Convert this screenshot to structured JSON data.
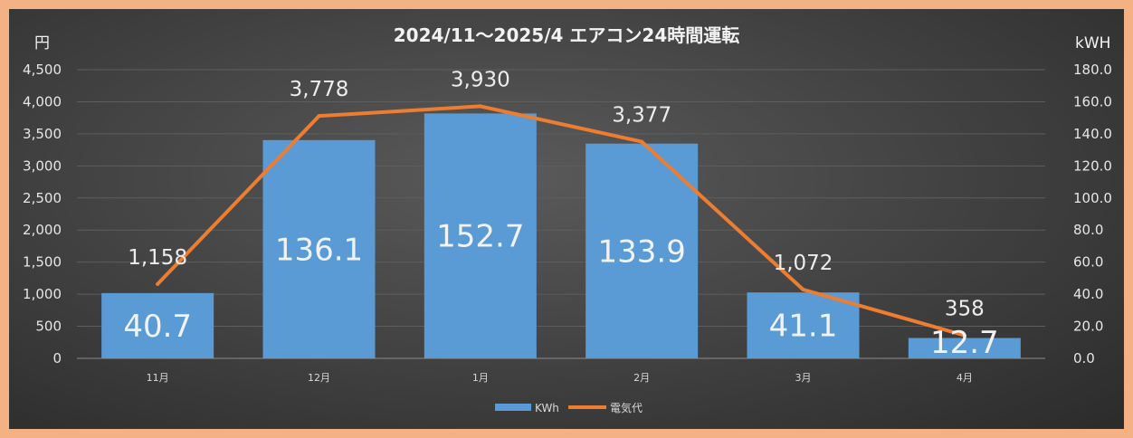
{
  "chart_data": {
    "type": "bar+line",
    "title": "2024/11～2025/4  エアコン24時間運転",
    "categories": [
      "11月",
      "12月",
      "1月",
      "2月",
      "3月",
      "4月"
    ],
    "left_axis": {
      "unit": "円",
      "ylim": [
        0,
        4500
      ],
      "ticks": [
        "0",
        "500",
        "1,000",
        "1,500",
        "2,000",
        "2,500",
        "3,000",
        "3,500",
        "4,000",
        "4,500"
      ]
    },
    "right_axis": {
      "unit": "kWH",
      "ylim": [
        0,
        180
      ],
      "ticks": [
        "0.0",
        "20.0",
        "40.0",
        "60.0",
        "80.0",
        "100.0",
        "120.0",
        "140.0",
        "160.0",
        "180.0"
      ]
    },
    "series": [
      {
        "name": "KWh",
        "type": "bar",
        "axis": "right",
        "color": "#5b9bd5",
        "values": [
          40.7,
          136.1,
          152.7,
          133.9,
          41.1,
          12.7
        ],
        "labels": [
          "40.7",
          "136.1",
          "152.7",
          "133.9",
          "41.1",
          "12.7"
        ]
      },
      {
        "name": "電気代",
        "type": "line",
        "axis": "left",
        "color": "#ed7d31",
        "values": [
          1158,
          3778,
          3930,
          3377,
          1072,
          358
        ],
        "labels": [
          "1,158",
          "3,778",
          "3,930",
          "3,377",
          "1,072",
          "358"
        ]
      }
    ],
    "grid": true,
    "legend": "bottom"
  }
}
